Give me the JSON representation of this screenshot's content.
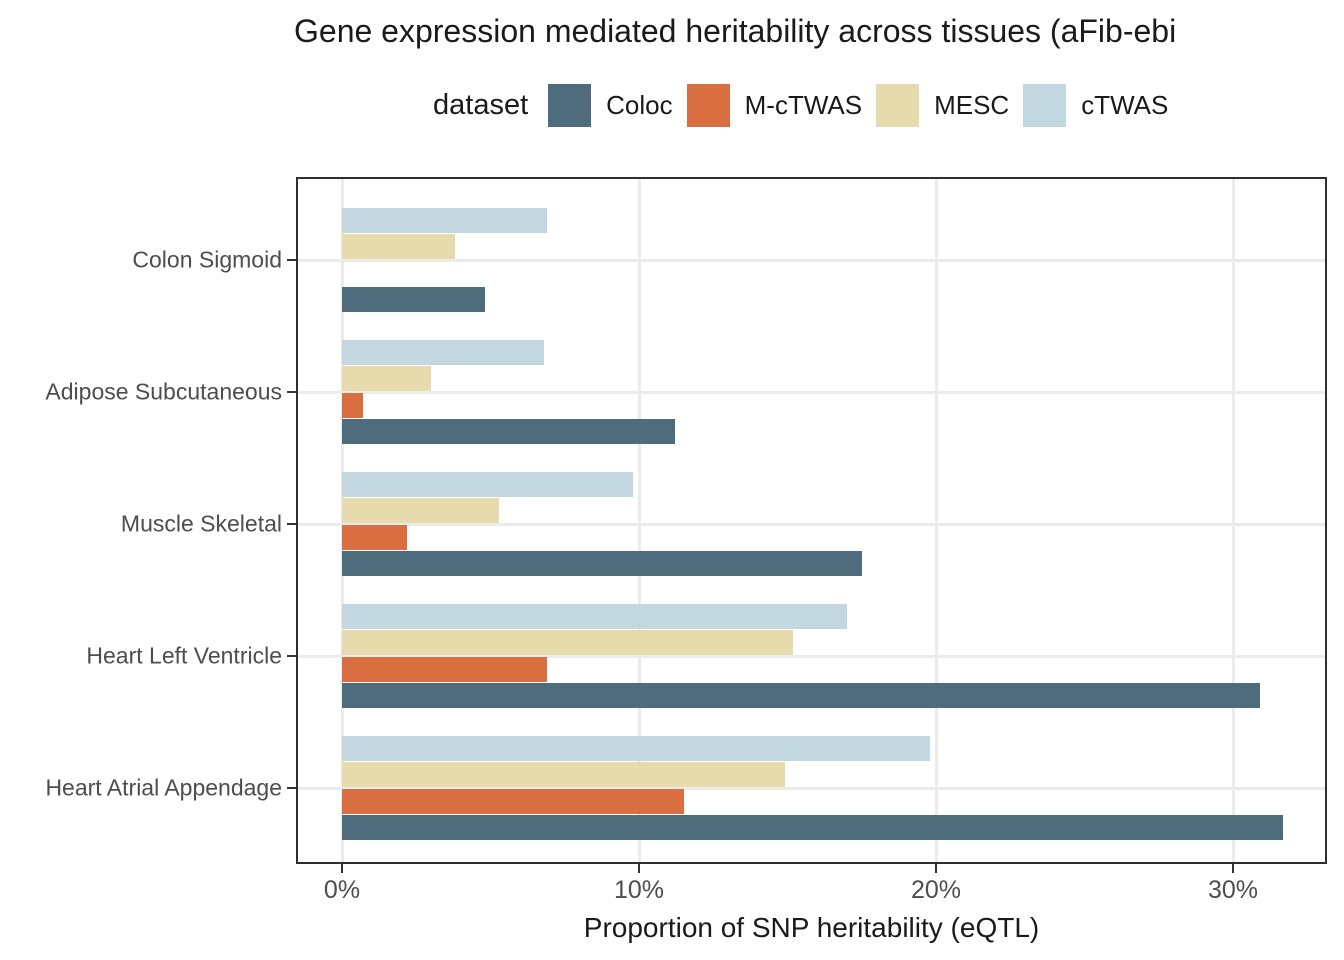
{
  "title": "Gene expression mediated heritability across tissues (aFib-ebi",
  "legend": {
    "title": "dataset",
    "items": [
      {
        "label": "Coloc",
        "color": "#4E6C7B"
      },
      {
        "label": "M-cTWAS",
        "color": "#D96F41"
      },
      {
        "label": "MESC",
        "color": "#E7DAAD"
      },
      {
        "label": "cTWAS",
        "color": "#C2D7DF"
      }
    ]
  },
  "chart_data": {
    "type": "bar",
    "orientation": "horizontal",
    "title": "Gene expression mediated heritability across tissues (aFib-ebi",
    "xlabel": "Proportion of SNP heritability (eQTL)",
    "ylabel": "",
    "xlim": [
      0,
      33.2
    ],
    "x_ticks": [
      {
        "value": 0,
        "label": "0%"
      },
      {
        "value": 10,
        "label": "10%"
      },
      {
        "value": 20,
        "label": "20%"
      },
      {
        "value": 30,
        "label": "30%"
      }
    ],
    "categories": [
      "Colon Sigmoid",
      "Adipose Subcutaneous",
      "Muscle Skeletal",
      "Heart Left Ventricle",
      "Heart Atrial Appendage"
    ],
    "row_order_top_to_bottom": [
      "cTWAS",
      "MESC",
      "M-cTWAS",
      "Coloc"
    ],
    "series": [
      {
        "name": "Coloc",
        "color": "#4E6C7B",
        "values": [
          4.8,
          11.2,
          17.5,
          30.9,
          31.7
        ]
      },
      {
        "name": "M-cTWAS",
        "color": "#D96F41",
        "values": [
          null,
          0.7,
          2.2,
          6.9,
          11.5
        ]
      },
      {
        "name": "MESC",
        "color": "#E7DAAD",
        "values": [
          3.8,
          3.0,
          5.3,
          15.2,
          14.9
        ]
      },
      {
        "name": "cTWAS",
        "color": "#C2D7DF",
        "values": [
          6.9,
          6.8,
          9.8,
          17.0,
          19.8
        ]
      }
    ],
    "grid": {
      "color": "#EBEBEB",
      "major_x": true,
      "major_y": true
    },
    "legend_position": "top"
  },
  "colors": {
    "panel_border": "#2E2E2E",
    "tick": "#333333",
    "axis_text": "#4D4D4D",
    "title_text": "#1A1A1A"
  }
}
